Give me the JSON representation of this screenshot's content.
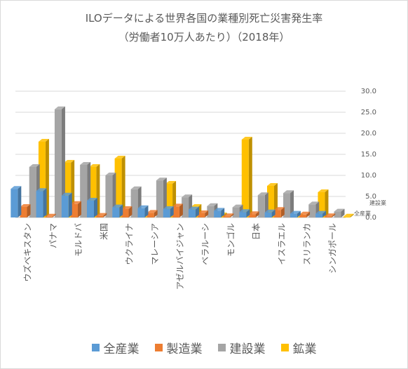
{
  "chart_data": {
    "type": "bar",
    "title": "ILOデータによる世界各国の業種別死亡災害発生率",
    "subtitle": "（労働者10万人あたり）（2018年）",
    "categories": [
      "ウズベキスタン",
      "パナマ",
      "モルドバ",
      "米国",
      "ウクライナ",
      "マレーシア",
      "アゼルバイジャン",
      "ベラルーシ",
      "モンゴル",
      "日本",
      "イスラエル",
      "スリランカ",
      "シンガポール"
    ],
    "series": [
      {
        "name": "全産業",
        "color": "#5b9bd5",
        "values": [
          6.8,
          6.3,
          5.2,
          4.0,
          2.4,
          2.2,
          2.0,
          1.9,
          1.6,
          1.3,
          1.2,
          0.9,
          0.9
        ]
      },
      {
        "name": "製造業",
        "color": "#ed7d31",
        "values": [
          2.5,
          0.2,
          3.2,
          0.4,
          2.0,
          1.1,
          2.6,
          1.0,
          0.3,
          0.8,
          1.8,
          0.7,
          0.3
        ]
      },
      {
        "name": "建設業",
        "color": "#a5a5a5",
        "values": [
          12.0,
          25.7,
          12.5,
          10.0,
          6.7,
          8.8,
          4.8,
          2.7,
          2.4,
          5.3,
          5.8,
          3.1,
          1.4
        ]
      },
      {
        "name": "鉱業",
        "color": "#ffc000",
        "values": [
          18.0,
          13.0,
          12.0,
          14.0,
          0.0,
          8.0,
          2.5,
          0.5,
          18.5,
          7.5,
          0.0,
          6.0,
          0.0
        ]
      }
    ],
    "yticks": [
      "0.0",
      "5.0",
      "10.0",
      "15.0",
      "20.0",
      "25.0",
      "30.0"
    ],
    "ylim": [
      0,
      30
    ],
    "depth_labels": [
      "建設業",
      "全産業"
    ],
    "legend_position": "bottom",
    "grid": true
  }
}
